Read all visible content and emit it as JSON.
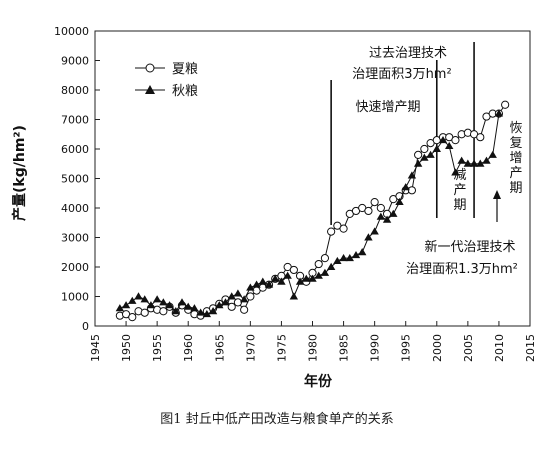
{
  "caption": "图1 封丘中低产田改造与粮食单产的关系",
  "chart_data": {
    "type": "line",
    "xlabel": "年份",
    "ylabel": "产量(kg/hm²)",
    "xlim": [
      1945,
      2015
    ],
    "ylim": [
      0,
      10000
    ],
    "x_ticks": [
      1945,
      1950,
      1955,
      1960,
      1965,
      1970,
      1975,
      1980,
      1985,
      1990,
      1995,
      2000,
      2005,
      2010,
      2015
    ],
    "y_ticks": [
      0,
      1000,
      2000,
      3000,
      4000,
      5000,
      6000,
      7000,
      8000,
      9000,
      10000
    ],
    "grid": false,
    "legend": "top-left",
    "series": [
      {
        "name": "夏粮",
        "marker": "open-circle",
        "x": [
          1949,
          1950,
          1951,
          1952,
          1953,
          1954,
          1955,
          1956,
          1957,
          1958,
          1959,
          1960,
          1961,
          1962,
          1963,
          1964,
          1965,
          1966,
          1967,
          1968,
          1969,
          1970,
          1971,
          1972,
          1973,
          1974,
          1975,
          1976,
          1977,
          1978,
          1979,
          1980,
          1981,
          1982,
          1983,
          1984,
          1985,
          1986,
          1987,
          1988,
          1989,
          1990,
          1991,
          1992,
          1993,
          1994,
          1995,
          1996,
          1997,
          1998,
          1999,
          2000,
          2001,
          2002,
          2003,
          2004,
          2005,
          2006,
          2007,
          2008,
          2009,
          2010,
          2011
        ],
        "values": [
          350,
          400,
          300,
          500,
          450,
          600,
          550,
          500,
          650,
          450,
          700,
          550,
          400,
          350,
          500,
          600,
          750,
          900,
          650,
          800,
          550,
          1000,
          1200,
          1300,
          1400,
          1600,
          1700,
          2000,
          1900,
          1700,
          1500,
          1800,
          2100,
          2300,
          3200,
          3400,
          3300,
          3800,
          3900,
          4000,
          3900,
          4200,
          4000,
          3800,
          4300,
          4400,
          4600,
          4600,
          5800,
          6000,
          6200,
          6300,
          6400,
          6400,
          6300,
          6500,
          6550,
          6500,
          6400,
          7100,
          7200,
          7200,
          7500
        ]
      },
      {
        "name": "秋粮",
        "marker": "filled-triangle",
        "x": [
          1949,
          1950,
          1951,
          1952,
          1953,
          1954,
          1955,
          1956,
          1957,
          1958,
          1959,
          1960,
          1961,
          1962,
          1963,
          1964,
          1965,
          1966,
          1967,
          1968,
          1969,
          1970,
          1971,
          1972,
          1973,
          1974,
          1975,
          1976,
          1977,
          1978,
          1979,
          1980,
          1981,
          1982,
          1983,
          1984,
          1985,
          1986,
          1987,
          1988,
          1989,
          1990,
          1991,
          1992,
          1993,
          1994,
          1995,
          1996,
          1997,
          1998,
          1999,
          2000,
          2001,
          2002,
          2003,
          2004,
          2005,
          2006,
          2007,
          2008,
          2009,
          2010
        ],
        "values": [
          600,
          700,
          850,
          1000,
          900,
          700,
          900,
          800,
          700,
          500,
          800,
          650,
          600,
          450,
          400,
          500,
          700,
          800,
          1000,
          1100,
          900,
          1300,
          1400,
          1500,
          1400,
          1600,
          1500,
          1700,
          1000,
          1500,
          1600,
          1600,
          1700,
          1800,
          2000,
          2200,
          2300,
          2300,
          2400,
          2500,
          3000,
          3200,
          3700,
          3600,
          3800,
          4200,
          4700,
          5100,
          5500,
          5700,
          5800,
          6000,
          6300,
          6100,
          5200,
          5600,
          5500,
          5500,
          5500,
          5600,
          5800,
          7200
        ]
      }
    ],
    "annotations": [
      {
        "text": "过去治理技术"
      },
      {
        "text": "治理面积3万hm²"
      },
      {
        "text": "快速增产期"
      },
      {
        "text": "减产期"
      },
      {
        "text": "恢复增产期"
      },
      {
        "text": "新一代治理技术"
      },
      {
        "text": "治理面积1.3万hm²"
      }
    ],
    "reference_lines_x": [
      1983,
      2000,
      2006
    ]
  }
}
